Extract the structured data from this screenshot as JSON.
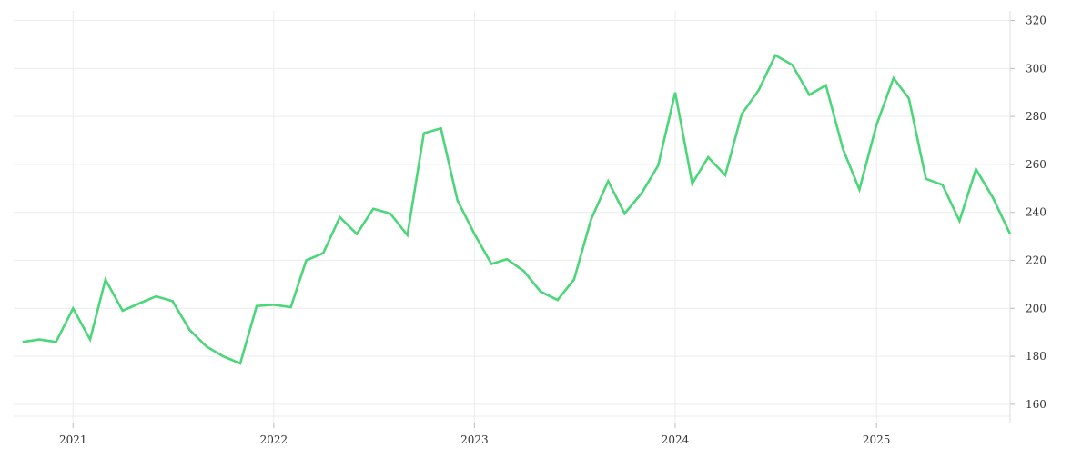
{
  "chart_data": {
    "type": "line",
    "title": "",
    "xlabel": "",
    "ylabel": "",
    "y_axis_side": "right",
    "grid": true,
    "legend": "none",
    "line_color": "#4cd67a",
    "grid_color": "#ececec",
    "xlim": [
      "2020-09-15",
      "2025-09-01"
    ],
    "ylim": [
      152,
      324
    ],
    "x_ticks": [
      {
        "date": "2021-01-01",
        "label": "2021"
      },
      {
        "date": "2022-01-01",
        "label": "2022"
      },
      {
        "date": "2023-01-01",
        "label": "2023"
      },
      {
        "date": "2024-01-01",
        "label": "2024"
      },
      {
        "date": "2025-01-01",
        "label": "2025"
      }
    ],
    "y_ticks": [
      160,
      180,
      200,
      220,
      240,
      260,
      280,
      300,
      320
    ],
    "series": [
      {
        "x": [
          "2020-10-01",
          "2020-11-01",
          "2020-12-01",
          "2021-01-01",
          "2021-02-01",
          "2021-03-01",
          "2021-04-01",
          "2021-05-01",
          "2021-06-01",
          "2021-07-01",
          "2021-08-01",
          "2021-09-01",
          "2021-10-01",
          "2021-11-01",
          "2021-12-01",
          "2022-01-01",
          "2022-02-01",
          "2022-03-01",
          "2022-04-01",
          "2022-05-01",
          "2022-06-01",
          "2022-07-01",
          "2022-08-01",
          "2022-09-01",
          "2022-10-01",
          "2022-11-01",
          "2022-12-01",
          "2023-01-01",
          "2023-02-01",
          "2023-03-01",
          "2023-04-01",
          "2023-05-01",
          "2023-06-01",
          "2023-07-01",
          "2023-08-01",
          "2023-09-01",
          "2023-10-01",
          "2023-11-01",
          "2023-12-01",
          "2024-01-01",
          "2024-02-01",
          "2024-03-01",
          "2024-04-01",
          "2024-05-01",
          "2024-06-01",
          "2024-07-01",
          "2024-08-01",
          "2024-09-01",
          "2024-10-01",
          "2024-11-01",
          "2024-12-01",
          "2025-01-01",
          "2025-02-01",
          "2025-03-01",
          "2025-04-01",
          "2025-05-01",
          "2025-06-01",
          "2025-07-01",
          "2025-08-01",
          "2025-09-01"
        ],
        "y": [
          186,
          187,
          186,
          200,
          187,
          212,
          199,
          202,
          205,
          203,
          191,
          184,
          180,
          177,
          201,
          201.5,
          200.5,
          220,
          223,
          238,
          231,
          241.5,
          239.5,
          230.5,
          273,
          275,
          245,
          231,
          218.5,
          220.5,
          215.5,
          207,
          203.5,
          212,
          237,
          253,
          239.5,
          248,
          259.5,
          290,
          252,
          263,
          255.5,
          281,
          291,
          305.5,
          301.5,
          289,
          293,
          266.5,
          249.5,
          276.5,
          296,
          287.5,
          254,
          251.5,
          236.5,
          258,
          246,
          231
        ]
      }
    ]
  }
}
